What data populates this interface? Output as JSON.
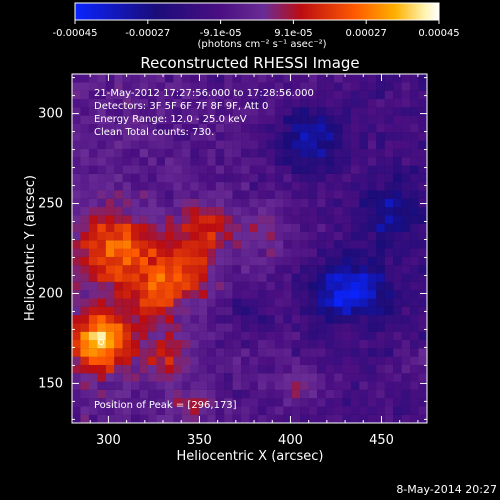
{
  "chart_data": {
    "type": "heatmap",
    "title": "Reconstructed RHESSI Image",
    "xlabel": "Heliocentric X (arcsec)",
    "ylabel": "Heliocentric Y (arcsec)",
    "xlim": [
      280,
      475
    ],
    "ylim": [
      128,
      322
    ],
    "x_ticks": [
      300,
      350,
      400,
      450
    ],
    "y_ticks": [
      150,
      200,
      250,
      300
    ],
    "colorbar": {
      "label": "(photons cm⁻² s⁻¹ asec⁻²)",
      "range": [
        -0.00045,
        0.00045
      ],
      "ticks": [
        "-0.00045",
        "-0.00027",
        "-9.1e-05",
        "9.1e-05",
        "0.00027",
        "0.00045"
      ]
    },
    "colormap": [
      "#0a24ff",
      "#1a0c7a",
      "#4b0f82",
      "#6a2c95",
      "#bb0d12",
      "#ff5a00",
      "#ffb000",
      "#fff3b0",
      "#ffffff"
    ],
    "annotations": [
      "21-May-2012 17:27:56.000 to 17:28:56.000",
      "Detectors: 3F 5F 6F 7F 8F 9F, Att 0",
      "Energy Range: 12.0 - 25.0 keV",
      "Clean     Total counts: 730."
    ],
    "peak_label": "Position of Peak = [296,173]",
    "peak_position": [
      296,
      173
    ],
    "timestamp": "8-May-2014 20:27",
    "regions": [
      {
        "type": "bright",
        "center": [
          296,
          173
        ],
        "radius": 16,
        "intensity": 0.00042
      },
      {
        "type": "bright",
        "center": [
          305,
          225
        ],
        "radius": 20,
        "intensity": 0.00031
      },
      {
        "type": "bright",
        "center": [
          338,
          210
        ],
        "radius": 18,
        "intensity": 0.00023
      },
      {
        "type": "bright",
        "center": [
          352,
          235
        ],
        "radius": 16,
        "intensity": 0.0002
      },
      {
        "type": "bright",
        "center": [
          323,
          195
        ],
        "radius": 14,
        "intensity": 0.00018
      },
      {
        "type": "bright",
        "center": [
          332,
          165
        ],
        "radius": 12,
        "intensity": 0.00017
      },
      {
        "type": "bright",
        "center": [
          346,
          140
        ],
        "radius": 10,
        "intensity": 0.00014
      },
      {
        "type": "bright",
        "center": [
          384,
          234
        ],
        "radius": 14,
        "intensity": 0.00012
      },
      {
        "type": "bright",
        "center": [
          405,
          150
        ],
        "radius": 10,
        "intensity": 0.00013
      },
      {
        "type": "bright",
        "center": [
          433,
          185
        ],
        "radius": 10,
        "intensity": 0.00015
      },
      {
        "type": "bright",
        "center": [
          470,
          160
        ],
        "radius": 10,
        "intensity": 0.00011
      },
      {
        "type": "negative",
        "center": [
          432,
          199
        ],
        "radius": 20,
        "intensity": -0.00036
      },
      {
        "type": "negative",
        "center": [
          410,
          285
        ],
        "radius": 18,
        "intensity": -0.00025
      },
      {
        "type": "negative",
        "center": [
          455,
          245
        ],
        "radius": 16,
        "intensity": -0.0002
      },
      {
        "type": "negative",
        "center": [
          378,
          190
        ],
        "radius": 10,
        "intensity": -0.00012
      }
    ]
  }
}
